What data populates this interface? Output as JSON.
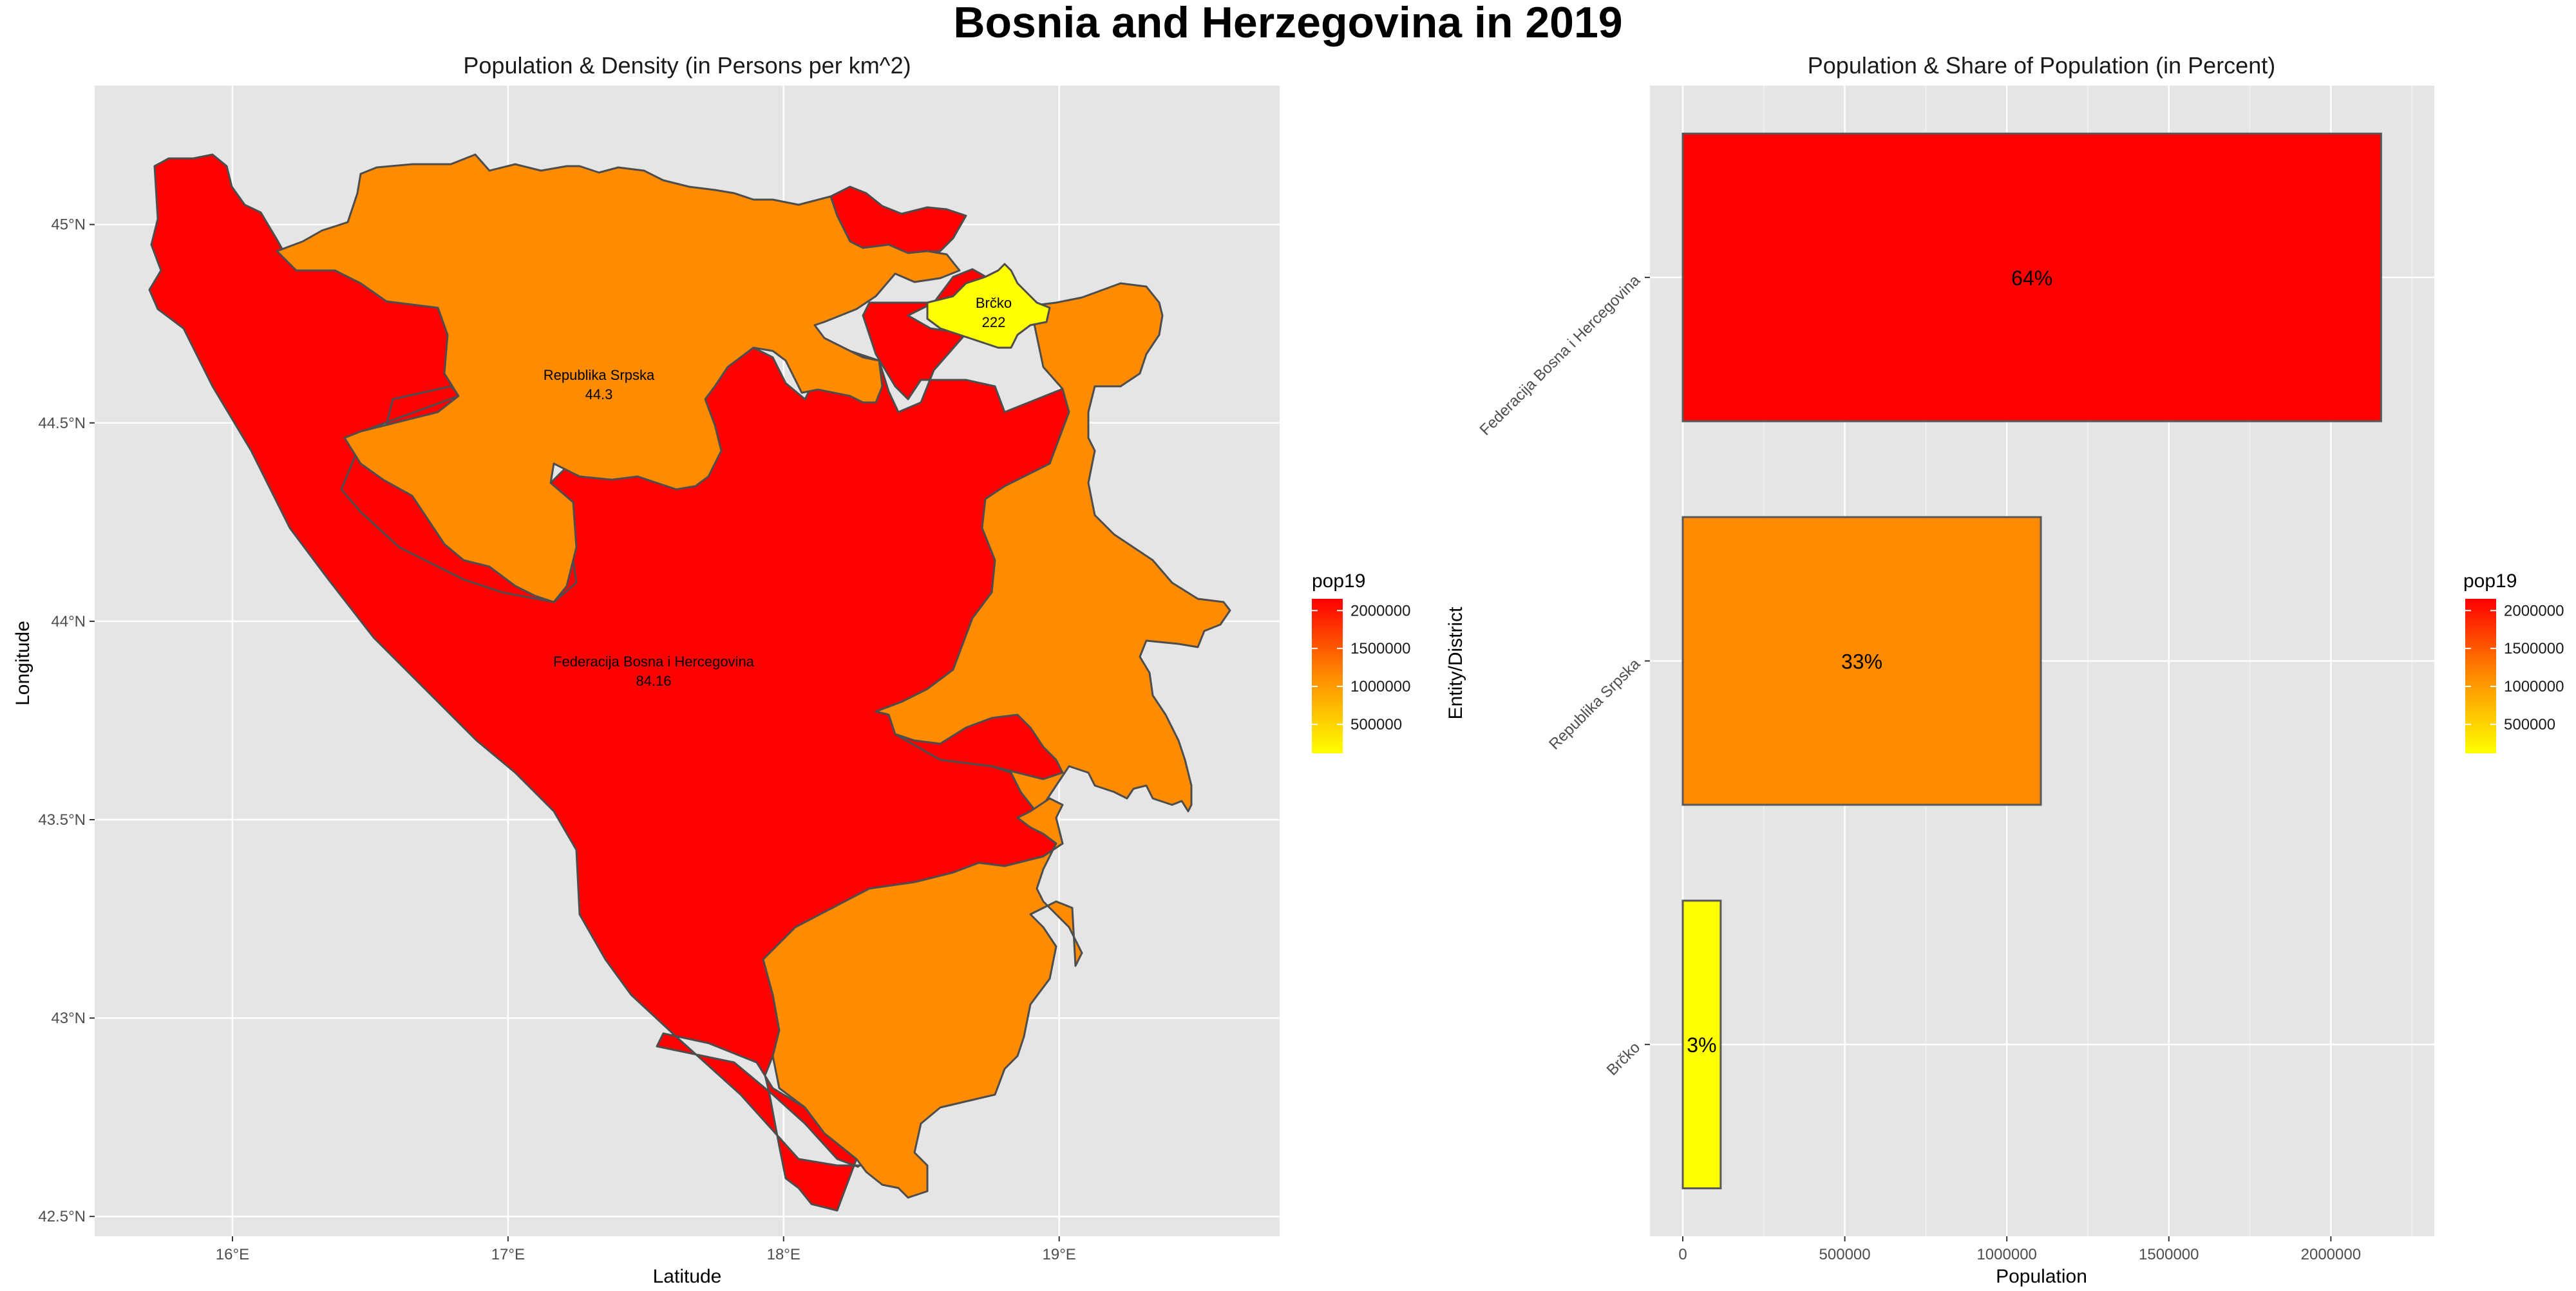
{
  "figure": {
    "title": "Bosnia and Herzegovina in 2019"
  },
  "colors": {
    "panel_bg": "#e5e5e5",
    "grid": "#ffffff",
    "high": "#ff0000",
    "mid": "#ff8c00",
    "low": "#ffff00",
    "border": "#4d4d4d"
  },
  "chart_data": [
    {
      "type": "map",
      "title": "Population & Density (in Persons per km^2)",
      "xlabel": "Latitude",
      "ylabel": "Longitude",
      "x_ticks": [
        "16°E",
        "17°E",
        "18°E",
        "19°E"
      ],
      "y_ticks": [
        "42.5°N",
        "43°N",
        "43.5°N",
        "44°N",
        "44.5°N",
        "45°N"
      ],
      "xlim": [
        15.5,
        19.8
      ],
      "ylim": [
        42.45,
        45.35
      ],
      "grid": true,
      "regions": [
        {
          "name": "Federacija Bosna i Hercegovina",
          "density": "84.16",
          "pop19": 2155000,
          "color": "#ff0000"
        },
        {
          "name": "Republika Srpska",
          "density": "44.3",
          "pop19": 1105000,
          "color": "#ff8c00"
        },
        {
          "name": "Brčko",
          "density": "222",
          "pop19": 117000,
          "color": "#ffff00"
        }
      ],
      "legend": {
        "title": "pop19",
        "placement": "right",
        "ticks": [
          "2000000",
          "1500000",
          "1000000",
          "500000"
        ],
        "range": [
          117000,
          2155000
        ]
      }
    },
    {
      "type": "bar",
      "orientation": "horizontal",
      "title": "Population & Share of Population (in Percent)",
      "xlabel": "Population",
      "ylabel": "Entity/District",
      "categories": [
        "Federacija Bosna i Hercegovina",
        "Republika Srpska",
        "Brčko"
      ],
      "values": [
        2155000,
        1105000,
        117000
      ],
      "labels": [
        "64%",
        "33%",
        "3%"
      ],
      "colors": [
        "#ff0000",
        "#ff8c00",
        "#ffff00"
      ],
      "x_ticks": [
        "0",
        "500000",
        "1000000",
        "1500000",
        "2000000"
      ],
      "xlim": [
        0,
        2250000
      ],
      "grid": true,
      "legend": {
        "title": "pop19",
        "placement": "right",
        "ticks": [
          "2000000",
          "1500000",
          "1000000",
          "500000"
        ],
        "range": [
          117000,
          2155000
        ]
      }
    }
  ]
}
